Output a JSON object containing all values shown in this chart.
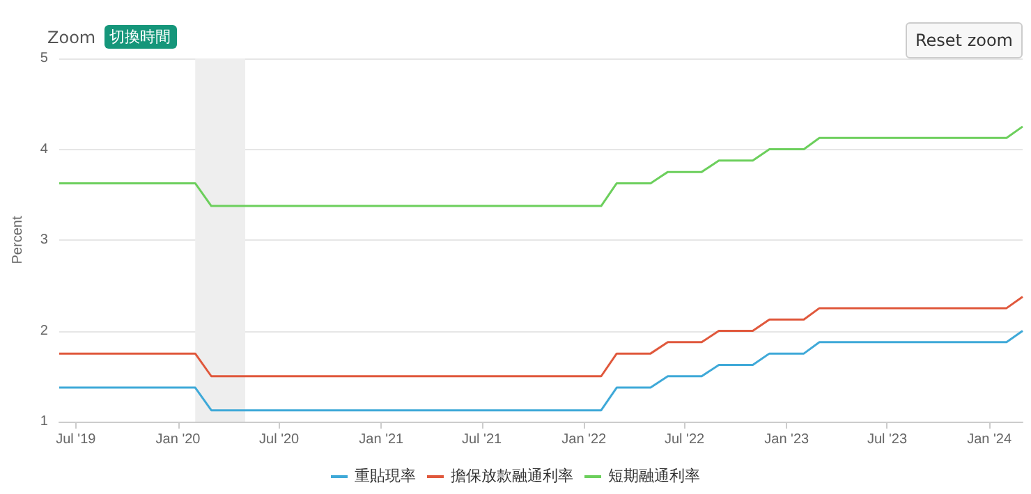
{
  "chart_data": {
    "type": "line",
    "ylabel": "Percent",
    "annotations": [
      "Zoom",
      "切換時間",
      "Reset zoom"
    ],
    "x": [
      "2019-06",
      "2019-07",
      "2019-08",
      "2019-09",
      "2019-10",
      "2019-11",
      "2019-12",
      "2020-01",
      "2020-02",
      "2020-03",
      "2020-04",
      "2020-05",
      "2020-06",
      "2020-07",
      "2020-08",
      "2020-09",
      "2020-10",
      "2020-11",
      "2020-12",
      "2021-01",
      "2021-02",
      "2021-03",
      "2021-04",
      "2021-05",
      "2021-06",
      "2021-07",
      "2021-08",
      "2021-09",
      "2021-10",
      "2021-11",
      "2021-12",
      "2022-01",
      "2022-02",
      "2022-03",
      "2022-04",
      "2022-05",
      "2022-06",
      "2022-07",
      "2022-08",
      "2022-09",
      "2022-10",
      "2022-11",
      "2022-12",
      "2023-01",
      "2023-02",
      "2023-03",
      "2023-04",
      "2023-05",
      "2023-06",
      "2023-07",
      "2023-08",
      "2023-09",
      "2023-10",
      "2023-11",
      "2023-12",
      "2024-01",
      "2024-02",
      "2024-03"
    ],
    "series": [
      {
        "name": "重貼現率",
        "color": "#3fa9d8",
        "values": [
          1.375,
          1.375,
          1.375,
          1.375,
          1.375,
          1.375,
          1.375,
          1.375,
          1.375,
          1.125,
          1.125,
          1.125,
          1.125,
          1.125,
          1.125,
          1.125,
          1.125,
          1.125,
          1.125,
          1.125,
          1.125,
          1.125,
          1.125,
          1.125,
          1.125,
          1.125,
          1.125,
          1.125,
          1.125,
          1.125,
          1.125,
          1.125,
          1.125,
          1.375,
          1.375,
          1.375,
          1.5,
          1.5,
          1.5,
          1.625,
          1.625,
          1.625,
          1.75,
          1.75,
          1.75,
          1.875,
          1.875,
          1.875,
          1.875,
          1.875,
          1.875,
          1.875,
          1.875,
          1.875,
          1.875,
          1.875,
          1.875,
          2.0
        ]
      },
      {
        "name": "擔保放款融通利率",
        "color": "#e0583c",
        "values": [
          1.75,
          1.75,
          1.75,
          1.75,
          1.75,
          1.75,
          1.75,
          1.75,
          1.75,
          1.5,
          1.5,
          1.5,
          1.5,
          1.5,
          1.5,
          1.5,
          1.5,
          1.5,
          1.5,
          1.5,
          1.5,
          1.5,
          1.5,
          1.5,
          1.5,
          1.5,
          1.5,
          1.5,
          1.5,
          1.5,
          1.5,
          1.5,
          1.5,
          1.75,
          1.75,
          1.75,
          1.875,
          1.875,
          1.875,
          2.0,
          2.0,
          2.0,
          2.125,
          2.125,
          2.125,
          2.25,
          2.25,
          2.25,
          2.25,
          2.25,
          2.25,
          2.25,
          2.25,
          2.25,
          2.25,
          2.25,
          2.25,
          2.375
        ]
      },
      {
        "name": "短期融通利率",
        "color": "#6ccf5c",
        "values": [
          3.625,
          3.625,
          3.625,
          3.625,
          3.625,
          3.625,
          3.625,
          3.625,
          3.625,
          3.375,
          3.375,
          3.375,
          3.375,
          3.375,
          3.375,
          3.375,
          3.375,
          3.375,
          3.375,
          3.375,
          3.375,
          3.375,
          3.375,
          3.375,
          3.375,
          3.375,
          3.375,
          3.375,
          3.375,
          3.375,
          3.375,
          3.375,
          3.375,
          3.625,
          3.625,
          3.625,
          3.75,
          3.75,
          3.75,
          3.875,
          3.875,
          3.875,
          4.0,
          4.0,
          4.0,
          4.125,
          4.125,
          4.125,
          4.125,
          4.125,
          4.125,
          4.125,
          4.125,
          4.125,
          4.125,
          4.125,
          4.125,
          4.25
        ]
      }
    ],
    "xlim": [
      "2019-06",
      "2024-03"
    ],
    "xticks": [
      {
        "value": "2019-07",
        "label": "Jul '19"
      },
      {
        "value": "2020-01",
        "label": "Jan '20"
      },
      {
        "value": "2020-07",
        "label": "Jul '20"
      },
      {
        "value": "2021-01",
        "label": "Jan '21"
      },
      {
        "value": "2021-07",
        "label": "Jul '21"
      },
      {
        "value": "2022-01",
        "label": "Jan '22"
      },
      {
        "value": "2022-07",
        "label": "Jul '22"
      },
      {
        "value": "2023-01",
        "label": "Jan '23"
      },
      {
        "value": "2023-07",
        "label": "Jul '23"
      },
      {
        "value": "2024-01",
        "label": "Jan '24"
      }
    ],
    "ylim": [
      1,
      5
    ],
    "yticks": [
      1,
      2,
      3,
      4,
      5
    ],
    "bands": [
      {
        "axis": "x",
        "from": "2020-02",
        "to": "2020-05",
        "color": "#eeeeee"
      }
    ],
    "grid": "y",
    "legend": "bottom",
    "marker": "none",
    "line_style": "solid"
  }
}
